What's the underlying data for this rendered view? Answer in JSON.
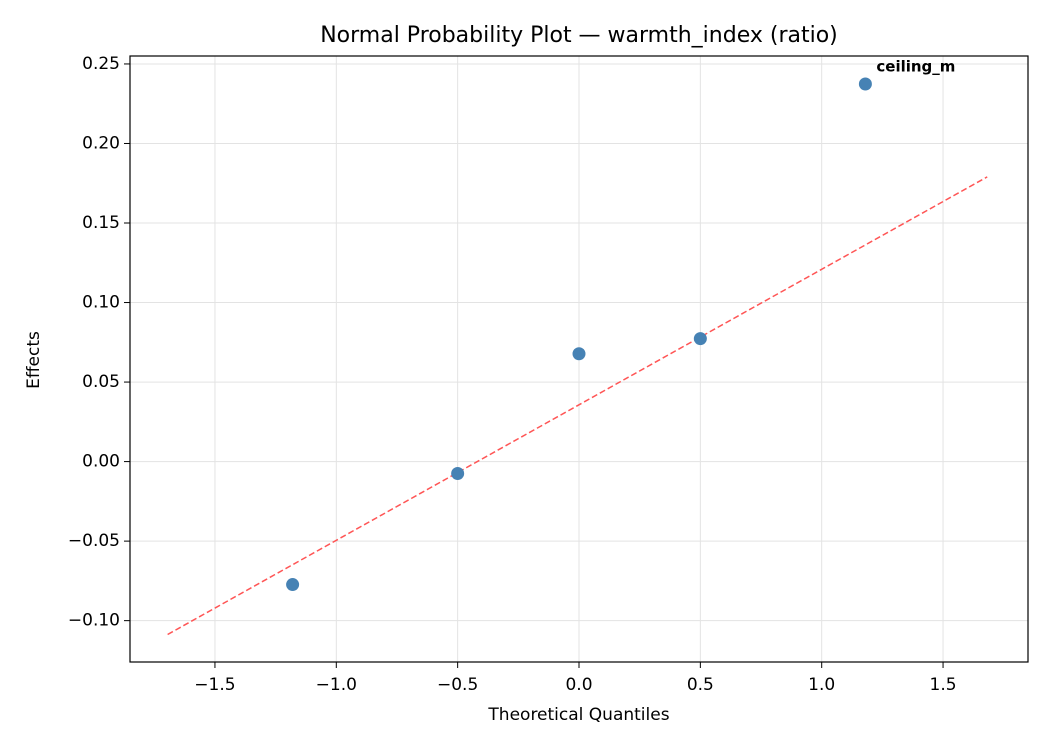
{
  "chart_data": {
    "type": "scatter",
    "title": "Normal Probability Plot — warmth_index (ratio)",
    "x_label": "Theoretical Quantiles",
    "y_label": "Effects",
    "x": [
      -1.18,
      -0.5,
      0.0,
      0.5,
      1.18
    ],
    "values": [
      -0.0773,
      -0.0075,
      0.0678,
      0.0773,
      0.2374
    ],
    "point_labels": [
      null,
      null,
      null,
      null,
      "ceiling_m"
    ],
    "point_label_color": "#ff0000",
    "color": "#4682b4",
    "fit_line": {
      "x": [
        -1.695,
        1.682
      ],
      "values": [
        -0.1087,
        0.179
      ],
      "color": "#ff5555"
    },
    "xlim": [
      -1.85,
      1.85
    ],
    "ylim": [
      -0.126,
      0.255
    ],
    "xticks": [
      {
        "value": -1.5,
        "label": "−1.5"
      },
      {
        "value": -1.0,
        "label": "−1.0"
      },
      {
        "value": -0.5,
        "label": "−0.5"
      },
      {
        "value": 0.0,
        "label": "0.0"
      },
      {
        "value": 0.5,
        "label": "0.5"
      },
      {
        "value": 1.0,
        "label": "1.0"
      },
      {
        "value": 1.5,
        "label": "1.5"
      }
    ],
    "yticks": [
      {
        "value": -0.1,
        "label": "−0.10"
      },
      {
        "value": -0.05,
        "label": "−0.05"
      },
      {
        "value": 0.0,
        "label": "0.00"
      },
      {
        "value": 0.05,
        "label": "0.05"
      },
      {
        "value": 0.1,
        "label": "0.10"
      },
      {
        "value": 0.15,
        "label": "0.15"
      },
      {
        "value": 0.2,
        "label": "0.20"
      },
      {
        "value": 0.25,
        "label": "0.25"
      }
    ],
    "grid": true
  }
}
